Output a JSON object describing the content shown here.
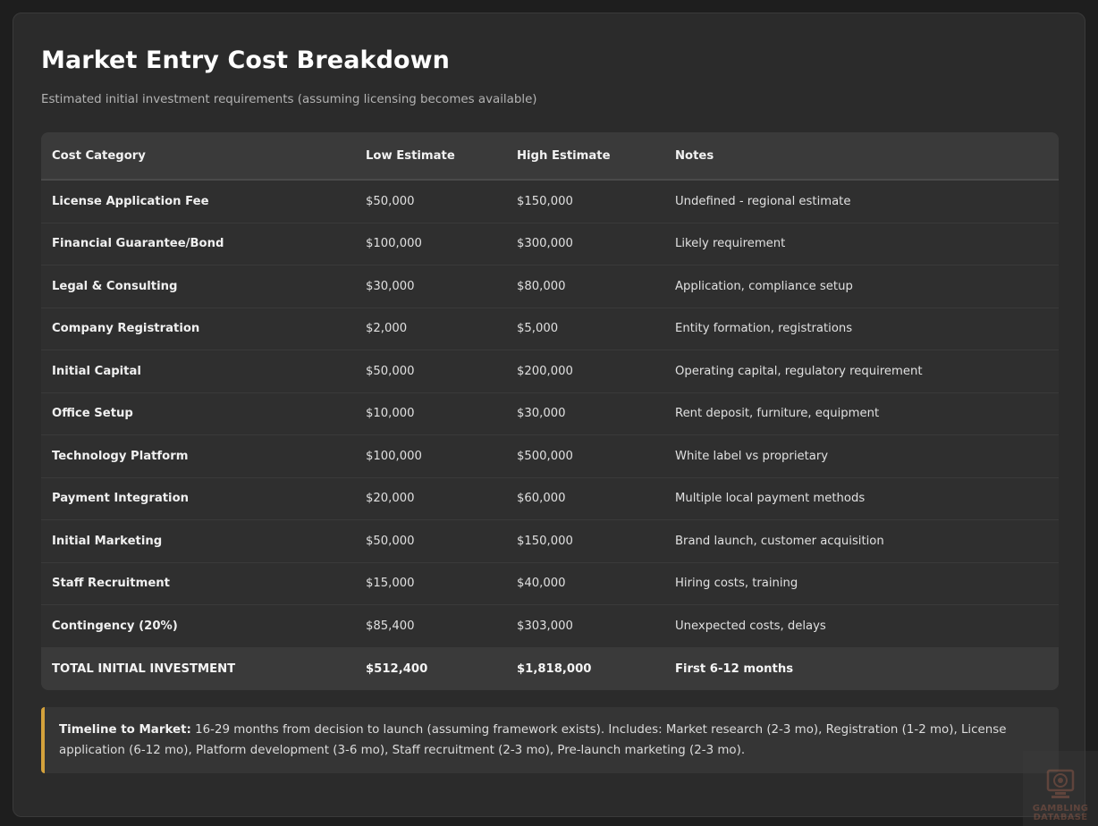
{
  "title": "Market Entry Cost Breakdown",
  "subtitle": "Estimated initial investment requirements (assuming licensing becomes available)",
  "table": {
    "headers": [
      "Cost Category",
      "Low Estimate",
      "High Estimate",
      "Notes"
    ],
    "rows": [
      {
        "category": "License Application Fee",
        "low": "$50,000",
        "high": "$150,000",
        "notes": "Undefined - regional estimate"
      },
      {
        "category": "Financial Guarantee/Bond",
        "low": "$100,000",
        "high": "$300,000",
        "notes": "Likely requirement"
      },
      {
        "category": "Legal & Consulting",
        "low": "$30,000",
        "high": "$80,000",
        "notes": "Application, compliance setup"
      },
      {
        "category": "Company Registration",
        "low": "$2,000",
        "high": "$5,000",
        "notes": "Entity formation, registrations"
      },
      {
        "category": "Initial Capital",
        "low": "$50,000",
        "high": "$200,000",
        "notes": "Operating capital, regulatory requirement"
      },
      {
        "category": "Office Setup",
        "low": "$10,000",
        "high": "$30,000",
        "notes": "Rent deposit, furniture, equipment"
      },
      {
        "category": "Technology Platform",
        "low": "$100,000",
        "high": "$500,000",
        "notes": "White label vs proprietary"
      },
      {
        "category": "Payment Integration",
        "low": "$20,000",
        "high": "$60,000",
        "notes": "Multiple local payment methods"
      },
      {
        "category": "Initial Marketing",
        "low": "$50,000",
        "high": "$150,000",
        "notes": "Brand launch, customer acquisition"
      },
      {
        "category": "Staff Recruitment",
        "low": "$15,000",
        "high": "$40,000",
        "notes": "Hiring costs, training"
      },
      {
        "category": "Contingency (20%)",
        "low": "$85,400",
        "high": "$303,000",
        "notes": "Unexpected costs, delays"
      }
    ],
    "total": {
      "category": "TOTAL INITIAL INVESTMENT",
      "low": "$512,400",
      "high": "$1,818,000",
      "notes": "First 6-12 months"
    }
  },
  "timeline": {
    "label": "Timeline to Market:",
    "text": " 16-29 months from decision to launch (assuming framework exists). Includes: Market research (2-3 mo), Registration (1-2 mo), License application (6-12 mo), Platform development (3-6 mo), Staff recruitment (2-3 mo), Pre-launch marketing (2-3 mo)."
  },
  "watermark": {
    "line1": "GAMBLING",
    "line2": "DATABASE"
  },
  "colors": {
    "background": "#1e1e1e",
    "card": "#2b2b2b",
    "header_row": "#3a3a3a",
    "accent": "#d4a23c"
  }
}
